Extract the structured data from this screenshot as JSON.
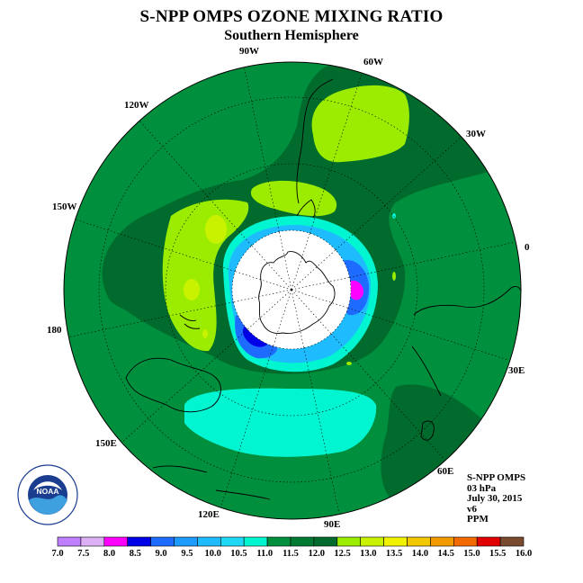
{
  "title": "S-NPP OMPS OZONE MIXING RATIO",
  "subtitle": "Southern Hemisphere",
  "longitude_labels": [
    {
      "id": "lon-90w",
      "text": "90W"
    },
    {
      "id": "lon-60w",
      "text": "60W"
    },
    {
      "id": "lon-30w",
      "text": "30W"
    },
    {
      "id": "lon-0",
      "text": "0"
    },
    {
      "id": "lon-30e",
      "text": "30E"
    },
    {
      "id": "lon-60e",
      "text": "60E"
    },
    {
      "id": "lon-90e",
      "text": "90E"
    },
    {
      "id": "lon-120e",
      "text": "120E"
    },
    {
      "id": "lon-150e",
      "text": "150E"
    },
    {
      "id": "lon-180",
      "text": "180"
    },
    {
      "id": "lon-150w",
      "text": "150W"
    },
    {
      "id": "lon-120w",
      "text": "120W"
    }
  ],
  "info": {
    "instrument": "S-NPP OMPS",
    "level": "03 hPa",
    "date": "July 30, 2015",
    "version": "v6",
    "units": "PPM"
  },
  "logo": {
    "text": "NOAA",
    "icon": "noaa-logo-icon"
  },
  "colorbar": {
    "ticks": [
      "7.0",
      "7.5",
      "8.0",
      "8.5",
      "9.0",
      "9.5",
      "10.0",
      "10.5",
      "11.0",
      "11.5",
      "12.0",
      "12.5",
      "13.0",
      "13.5",
      "14.0",
      "14.5",
      "15.0",
      "15.5",
      "16.0"
    ],
    "colors": [
      "#bf80ff",
      "#dcb0f5",
      "#ff00ff",
      "#0000e8",
      "#1e6cff",
      "#1e9bff",
      "#1ebcff",
      "#1ed8f5",
      "#00f5d0",
      "#008f3c",
      "#007a33",
      "#006b2d",
      "#9bec00",
      "#c8f200",
      "#f2f200",
      "#f2c800",
      "#f29b00",
      "#f26a00",
      "#e00000",
      "#7a4a30"
    ]
  },
  "map_colors": {
    "background": "#008f3c",
    "dark_green": "#006b2d",
    "light_green": "#9bec00",
    "yellow_green": "#c8f200",
    "cyan": "#00f5d0",
    "light_blue": "#1ebcff",
    "blue": "#1e6cff",
    "deep_blue": "#0000e8",
    "magenta": "#ff00ff",
    "no_data": "#ffffff"
  }
}
